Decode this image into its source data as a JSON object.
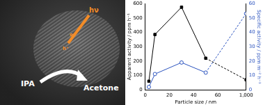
{
  "micrograph": {
    "labels": {
      "light": "hν",
      "electron": "e⁻",
      "hole": "h⁺",
      "reactant": "IPA",
      "product": "Acetone"
    }
  },
  "chart_data": {
    "type": "line",
    "x_label": "Particle size / nm",
    "y_label": "Apparent activity / ppm h⁻¹",
    "y2_label": "Specific activity / ppm m⁻² h⁻¹",
    "x": [
      3,
      8,
      30,
      50,
      1000
    ],
    "series": [
      {
        "color": "#000000",
        "marker": "square",
        "line_style": "solid",
        "values": [
          60,
          385,
          575,
          220,
          70
        ]
      },
      {
        "color": "#2a52be",
        "marker": "circle",
        "line_style": "solid",
        "axis": "y2",
        "values": [
          2,
          11,
          19,
          12,
          53
        ]
      }
    ],
    "xlim": [
      0,
      1000
    ],
    "xticks": [
      0,
      20,
      40,
      60,
      1000
    ],
    "ylim": [
      0,
      600
    ],
    "yticks": [
      0,
      100,
      200,
      300,
      400,
      500,
      600
    ],
    "y2lim": [
      0,
      60
    ],
    "y2ticks": [
      0,
      10,
      20,
      30,
      40,
      50,
      60
    ],
    "grid": false,
    "legend": null
  }
}
